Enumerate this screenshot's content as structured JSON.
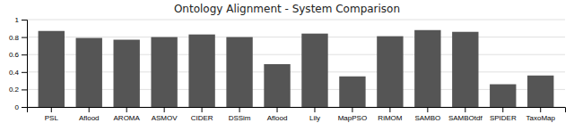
{
  "chart_data": {
    "type": "bar",
    "title": "Ontology Alignment - System Comparison",
    "categories": [
      "PSL",
      "Aflood",
      "AROMA",
      "ASMOV",
      "CIDER",
      "DSSim",
      "Aflood",
      "Lily",
      "MapPSO",
      "RiMOM",
      "SAMBO",
      "SAMBOtdf",
      "SPIDER",
      "TaxoMap"
    ],
    "values": [
      0.87,
      0.79,
      0.77,
      0.8,
      0.83,
      0.8,
      0.49,
      0.84,
      0.35,
      0.81,
      0.88,
      0.86,
      0.26,
      0.36
    ],
    "color": "#555555",
    "ylim": [
      0,
      1.0
    ],
    "yticks": [
      0,
      0.2,
      0.4,
      0.6,
      0.8,
      1
    ],
    "grid": true
  }
}
